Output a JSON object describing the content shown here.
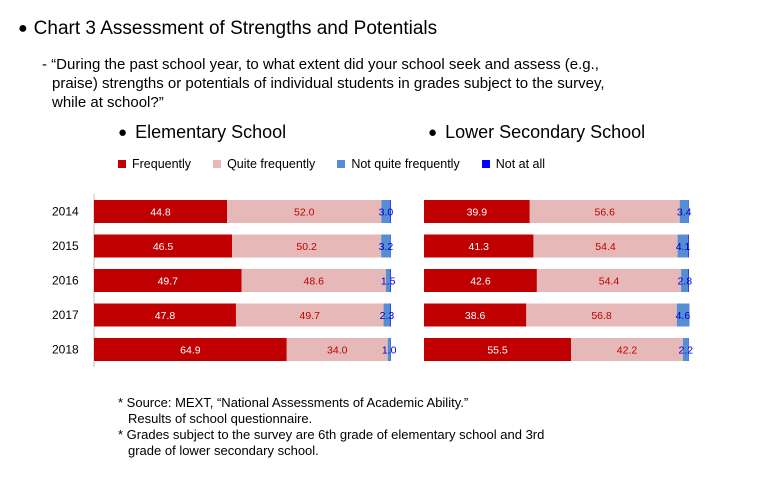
{
  "page": {
    "title": "Chart 3 Assessment of Strengths and Potentials",
    "question_lines": [
      "- “During the past school year, to what extent did your school seek and assess (e.g.,",
      "praise) strengths or potentials of individual students in grades subject to the survey,",
      "while at school?”"
    ],
    "notes": [
      "* Source: MEXT, “National Assessments of Academic Ability.”",
      "Results of school questionnaire.",
      "* Grades subject to the survey are 6th grade of elementary school and 3rd",
      "grade of lower secondary school."
    ]
  },
  "legend": [
    {
      "label": "Frequently",
      "color": "#c00000"
    },
    {
      "label": "Quite frequently",
      "color": "#e6b8b7"
    },
    {
      "label": "Not quite frequently",
      "color": "#558ed5"
    },
    {
      "label": "Not at all",
      "color": "#0000ff"
    }
  ],
  "chart_data": [
    {
      "type": "bar",
      "orientation": "horizontal",
      "stacked": true,
      "title": "Elementary School",
      "categories": [
        "2014",
        "2015",
        "2016",
        "2017",
        "2018"
      ],
      "series": [
        {
          "name": "Frequently",
          "values": [
            44.8,
            46.5,
            49.7,
            47.8,
            64.9
          ],
          "labels": [
            "44.8",
            "46.5",
            "49.7",
            "47.8",
            "64.9"
          ]
        },
        {
          "name": "Quite frequently",
          "values": [
            52.0,
            50.2,
            48.6,
            49.7,
            34.0
          ],
          "labels": [
            "52.0",
            "50.2",
            "48.6",
            "49.7",
            "34.0"
          ]
        },
        {
          "name": "Not quite frequently",
          "values": [
            3.0,
            3.2,
            1.5,
            2.3,
            1.0
          ],
          "labels": [
            "3.0",
            "3.2",
            "1.5",
            "2.3",
            "1.0"
          ]
        },
        {
          "name": "Not at all",
          "values": [
            0.2,
            0.1,
            0.2,
            0.2,
            0.1
          ]
        }
      ],
      "xlim": [
        0,
        100
      ]
    },
    {
      "type": "bar",
      "orientation": "horizontal",
      "stacked": true,
      "title": "Lower Secondary School",
      "categories": [
        "2014",
        "2015",
        "2016",
        "2017",
        "2018"
      ],
      "series": [
        {
          "name": "Frequently",
          "values": [
            39.9,
            41.3,
            42.6,
            38.6,
            55.5
          ],
          "labels": [
            "39.9",
            "41.3",
            "42.6",
            "38.6",
            "55.5"
          ]
        },
        {
          "name": "Quite frequently",
          "values": [
            56.6,
            54.4,
            54.4,
            56.8,
            42.2
          ],
          "labels": [
            "56.6",
            "54.4",
            "54.4",
            "56.8",
            "42.2"
          ]
        },
        {
          "name": "Not quite frequently",
          "values": [
            3.4,
            4.1,
            2.8,
            4.6,
            2.2
          ],
          "labels": [
            "3.4",
            "4.1",
            "2.8",
            "4.6",
            "2.2"
          ]
        },
        {
          "name": "Not at all",
          "values": [
            0.1,
            0.2,
            0.2,
            0.1,
            0.1
          ]
        }
      ],
      "xlim": [
        0,
        100
      ]
    }
  ]
}
